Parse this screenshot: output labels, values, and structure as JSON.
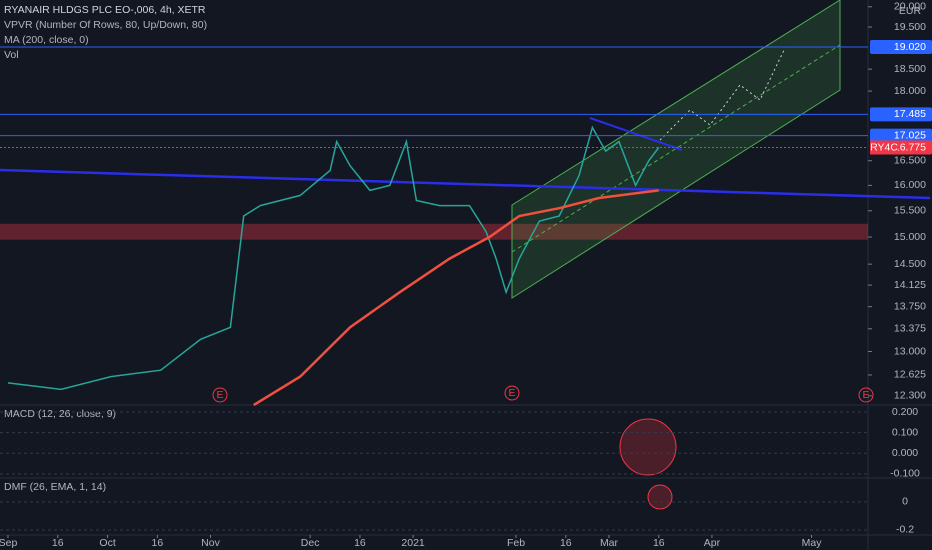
{
  "chart_data": {
    "type": "line",
    "title": "RYANAIR HLDGS PLC EO-,006, 4h, XETR",
    "indicators": [
      "VPVR (Number Of Rows, 80, Up/Down, 80)",
      "Vol"
    ],
    "currency": "EUR",
    "symbol": "RY4C",
    "earnings_marker": "E",
    "log_scale": true,
    "grid": false,
    "xlim": [
      -2.4,
      259
    ],
    "xticks": [
      {
        "value": 0,
        "label": "Sep"
      },
      {
        "value": 15,
        "label": "16"
      },
      {
        "value": 30,
        "label": "Oct"
      },
      {
        "value": 45,
        "label": "16"
      },
      {
        "value": 61,
        "label": "Nov"
      },
      {
        "value": 91,
        "label": "Dec"
      },
      {
        "value": 106,
        "label": "16"
      },
      {
        "value": 122,
        "label": "2021"
      },
      {
        "value": 153,
        "label": "Feb"
      },
      {
        "value": 168,
        "label": "16"
      },
      {
        "value": 181,
        "label": "Mar"
      },
      {
        "value": 196,
        "label": "16"
      },
      {
        "value": 212,
        "label": "Apr"
      },
      {
        "value": 242,
        "label": "May"
      }
    ],
    "ylim": [
      12.16,
      20.17
    ],
    "yticks": [
      {
        "value": 20,
        "label": "20.000"
      },
      {
        "value": 19.5,
        "label": "19.500"
      },
      {
        "value": 18.5,
        "label": "18.500"
      },
      {
        "value": 18,
        "label": "18.000"
      },
      {
        "value": 16.5,
        "label": "16.500"
      },
      {
        "value": 16,
        "label": "16.000"
      },
      {
        "value": 15.5,
        "label": "15.500"
      },
      {
        "value": 15,
        "label": "15.000"
      },
      {
        "value": 14.5,
        "label": "14.500"
      },
      {
        "value": 14.125,
        "label": "14.125"
      },
      {
        "value": 13.75,
        "label": "13.750"
      },
      {
        "value": 13.375,
        "label": "13.375"
      },
      {
        "value": 13,
        "label": "13.000"
      },
      {
        "value": 12.625,
        "label": "12.625"
      },
      {
        "value": 12.3,
        "label": "12.300"
      }
    ],
    "levels": [
      {
        "value": 19.02,
        "label": "19.020",
        "color": "#2962ff"
      },
      {
        "value": 17.485,
        "label": "17.485",
        "color": "#2962ff"
      },
      {
        "value": 17.025,
        "label": "17.025",
        "color": "#2962ff"
      },
      {
        "value": 16.775,
        "label": "16.775",
        "color": "#f23645"
      }
    ],
    "zone": [
      14.95,
      15.25
    ],
    "series": [
      {
        "color": "#26a69a",
        "x": [
          0,
          16,
          31,
          46,
          58,
          67,
          71,
          76,
          88,
          97,
          99,
          103,
          109,
          115,
          120,
          123,
          130,
          139,
          144,
          147,
          150,
          154,
          160,
          166,
          172,
          176,
          180,
          184,
          189,
          193,
          196
        ],
        "values": [
          12.5,
          12.4,
          12.6,
          12.7,
          13.2,
          13.4,
          15.4,
          15.6,
          15.8,
          16.3,
          16.9,
          16.4,
          15.9,
          16.0,
          16.9,
          15.7,
          15.6,
          15.6,
          15.1,
          14.6,
          14.0,
          14.6,
          15.3,
          15.4,
          16.2,
          17.2,
          16.7,
          16.9,
          16.0,
          16.5,
          16.775
        ]
      },
      {
        "name": "MA (200, close, 0)",
        "color": "#f0513f",
        "x": [
          74,
          88,
          103,
          118,
          133,
          145,
          154,
          166,
          178,
          190,
          196
        ],
        "values": [
          12.16,
          12.6,
          13.4,
          14.0,
          14.6,
          15.0,
          15.4,
          15.55,
          15.75,
          15.85,
          15.9
        ]
      }
    ],
    "panes": [
      {
        "title": "MACD (12, 26, close, 9)",
        "ylim": [
          -0.12,
          0.234
        ],
        "yticks": [
          {
            "value": 0.2,
            "label": "0.200"
          },
          {
            "value": 0.1,
            "label": "0.100"
          },
          {
            "value": 0,
            "label": "0.000"
          },
          {
            "value": -0.1,
            "label": "-0.100"
          }
        ]
      },
      {
        "title": "DMF (26, EMA, 1, 14)",
        "ylim": [
          -0.236,
          0.17
        ],
        "yticks": [
          0,
          -0.2
        ]
      }
    ]
  }
}
